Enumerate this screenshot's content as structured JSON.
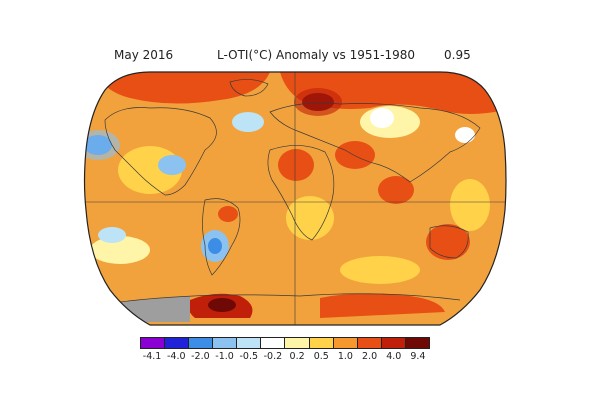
{
  "header": {
    "period": "May 2016",
    "title": "L-OTI(°C) Anomaly vs 1951-1980",
    "global_mean": "0.95"
  },
  "map": {
    "projection": "robinson",
    "ocean_base_color": "#f2a23c",
    "land_outline_color": "#3a3a3a",
    "no_data_color": "#9e9e9e"
  },
  "legend": {
    "colors": [
      "#8a00d4",
      "#2222d8",
      "#3c8de6",
      "#8bc2f0",
      "#bde3f7",
      "#ffffff",
      "#fff5a8",
      "#ffd24a",
      "#f6982d",
      "#e84f14",
      "#c0200a",
      "#6e0906"
    ],
    "tick_labels": [
      "-4.1",
      "-4.0",
      "-2.0",
      "-1.0",
      "-0.5",
      "-0.2",
      "0.2",
      "0.5",
      "1.0",
      "2.0",
      "4.0",
      "9.4"
    ]
  }
}
